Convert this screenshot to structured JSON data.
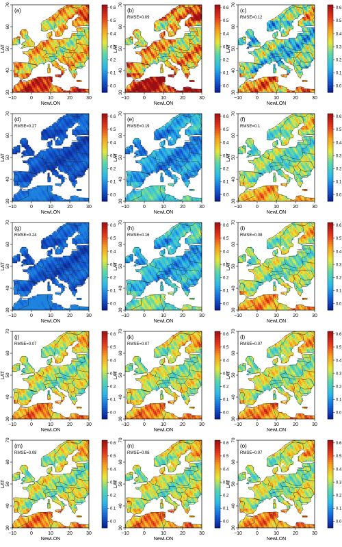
{
  "figure": {
    "x_axis_label": "NewLON",
    "y_axis_label": "LAT",
    "x_ticks": [
      "−10",
      "0",
      "10",
      "20",
      "30"
    ],
    "y_ticks": [
      "30",
      "40",
      "50",
      "60",
      "70"
    ],
    "colorbar_ticks": [
      "0.0",
      "0.1",
      "0.2",
      "0.3",
      "0.4",
      "0.5",
      "0.6"
    ],
    "colorbar_range": [
      -0.05,
      0.62
    ],
    "colormap": [
      "#0a1a8c",
      "#1565d8",
      "#2db8e8",
      "#58d6b0",
      "#e6e83a",
      "#f7a020",
      "#e2361c",
      "#9c0f12"
    ]
  },
  "panels": [
    {
      "label": "(a)",
      "rmse": "",
      "base": 0.36,
      "amp": 0.17,
      "dark_bias": 0
    },
    {
      "label": "(b)",
      "rmse": "RMSE=0.09",
      "base": 0.38,
      "amp": 0.22,
      "dark_bias": 0
    },
    {
      "label": "(c)",
      "rmse": "RMSE=0.12",
      "base": 0.22,
      "amp": 0.22,
      "dark_bias": 0
    },
    {
      "label": "(d)",
      "rmse": "RMSE=0.27",
      "base": 0.02,
      "amp": 0.05,
      "dark_bias": 1
    },
    {
      "label": "(e)",
      "rmse": "RMSE=0.19",
      "base": 0.1,
      "amp": 0.1,
      "dark_bias": 0
    },
    {
      "label": "(f)",
      "rmse": "RMSE=0.1",
      "base": 0.26,
      "amp": 0.14,
      "dark_bias": 0
    },
    {
      "label": "(g)",
      "rmse": "RMSE=0.24",
      "base": 0.03,
      "amp": 0.06,
      "dark_bias": 1
    },
    {
      "label": "(h)",
      "rmse": "RMSE=0.16",
      "base": 0.14,
      "amp": 0.12,
      "dark_bias": 0
    },
    {
      "label": "(i)",
      "rmse": "RMSE=0.08",
      "base": 0.28,
      "amp": 0.14,
      "dark_bias": 0
    },
    {
      "label": "(j)",
      "rmse": "RMSE=0.07",
      "base": 0.3,
      "amp": 0.14,
      "dark_bias": 0
    },
    {
      "label": "(k)",
      "rmse": "RMSE=0.07",
      "base": 0.3,
      "amp": 0.14,
      "dark_bias": 0
    },
    {
      "label": "(l)",
      "rmse": "RMSE=0.07",
      "base": 0.3,
      "amp": 0.14,
      "dark_bias": 0
    },
    {
      "label": "(m)",
      "rmse": "RMSE=0.08",
      "base": 0.3,
      "amp": 0.14,
      "dark_bias": 0
    },
    {
      "label": "(n)",
      "rmse": "RMSE=0.08",
      "base": 0.3,
      "amp": 0.14,
      "dark_bias": 0
    },
    {
      "label": "(o)",
      "rmse": "RMSE=0.07",
      "base": 0.3,
      "amp": 0.14,
      "dark_bias": 0
    }
  ]
}
